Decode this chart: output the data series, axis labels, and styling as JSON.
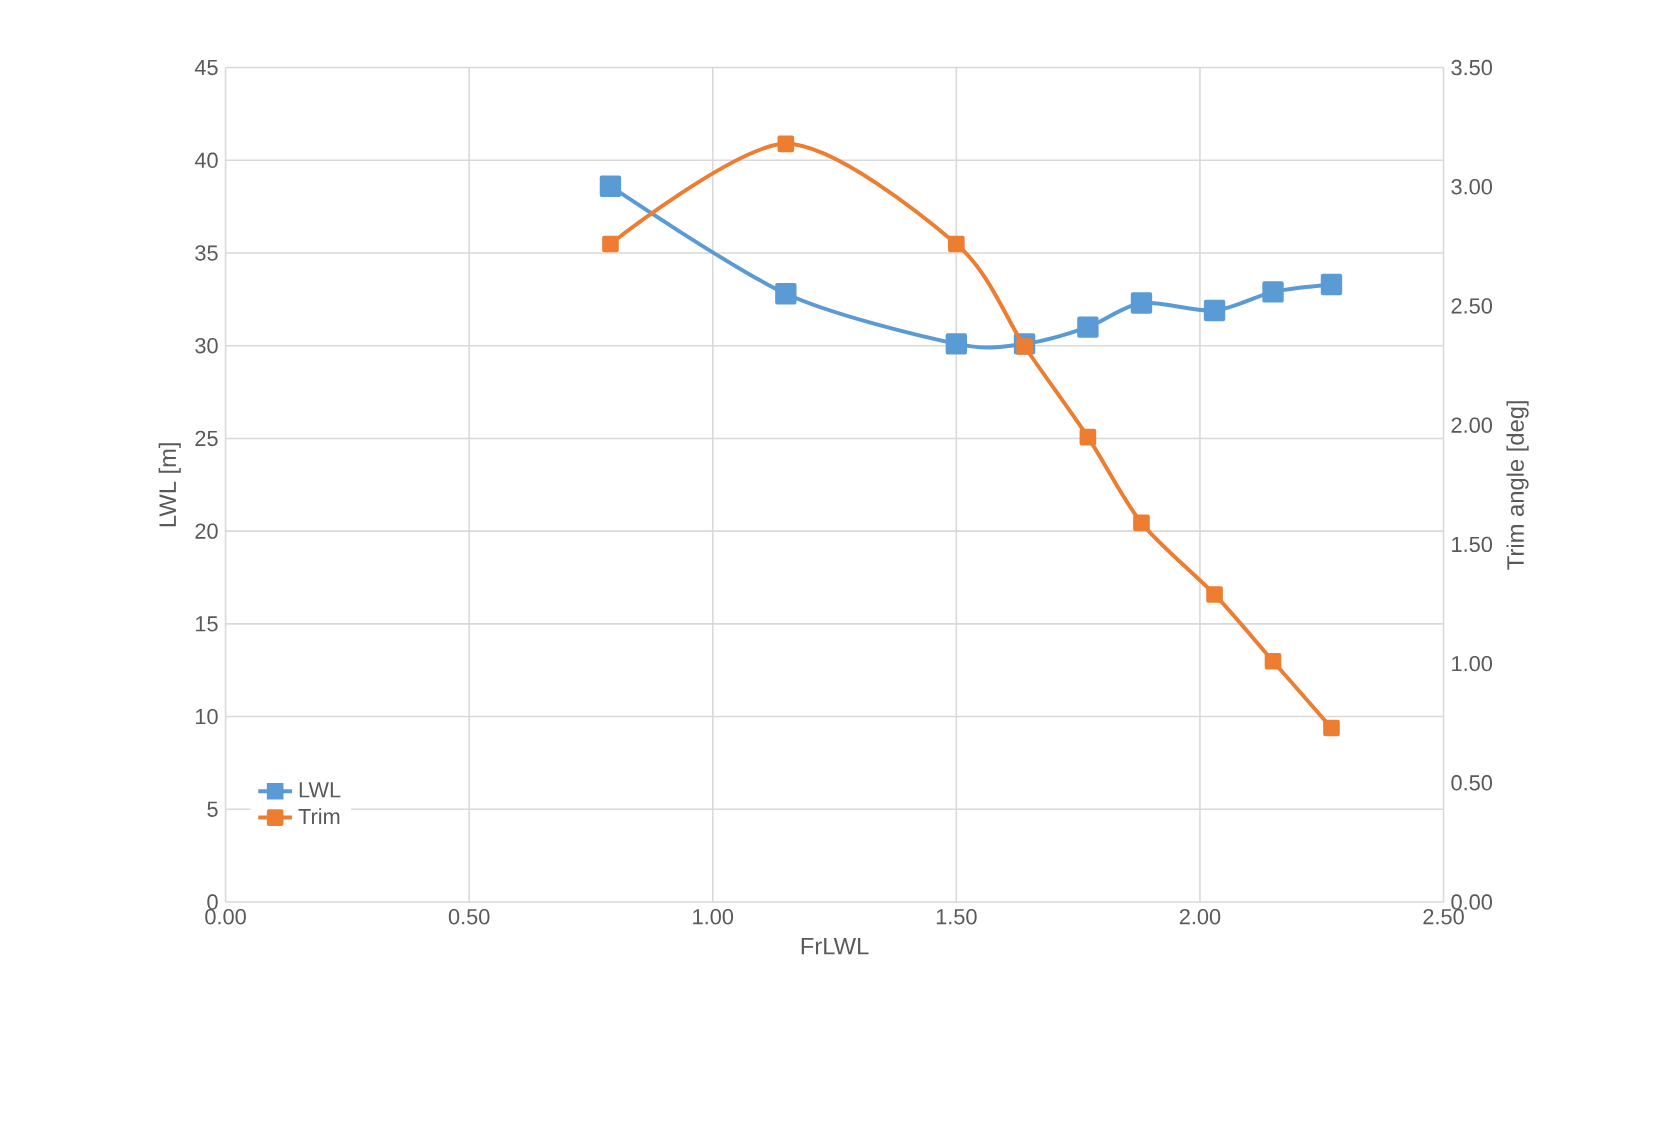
{
  "chart_data": {
    "type": "line",
    "xlabel": "FrLWL",
    "ylabel": "LWL [m]",
    "y2label": "Trim angle [deg]",
    "x": [
      0.79,
      1.15,
      1.5,
      1.64,
      1.77,
      1.88,
      2.03,
      2.15,
      2.27
    ],
    "series": [
      {
        "name": "LWL",
        "color": "#5b9bd5",
        "values": [
          38.6,
          32.8,
          30.1,
          30.1,
          31.0,
          32.3,
          31.9,
          32.9,
          33.3
        ]
      },
      {
        "name": "Trim",
        "color": "#ed7d31",
        "axis": "y2",
        "values": [
          2.76,
          3.18,
          2.76,
          2.33,
          1.95,
          1.59,
          1.29,
          1.01,
          0.73
        ]
      }
    ],
    "xlim": [
      0,
      2.5
    ],
    "xticks": [
      {
        "value": 0,
        "label": "0.00"
      },
      {
        "value": 0.5,
        "label": "0.50"
      },
      {
        "value": 1,
        "label": "1.00"
      },
      {
        "value": 1.5,
        "label": "1.50"
      },
      {
        "value": 2,
        "label": "2.00"
      },
      {
        "value": 2.5,
        "label": "2.50"
      }
    ],
    "ylim": [
      0,
      45
    ],
    "yticks": [
      0,
      5,
      10,
      15,
      20,
      25,
      30,
      35,
      40,
      45
    ],
    "y2lim": [
      0,
      3.5
    ],
    "y2ticks": [
      {
        "value": 0,
        "label": "0.00"
      },
      {
        "value": 0.5,
        "label": "0.50"
      },
      {
        "value": 1,
        "label": "1.00"
      },
      {
        "value": 1.5,
        "label": "1.50"
      },
      {
        "value": 2,
        "label": "2.00"
      },
      {
        "value": 2.5,
        "label": "2.50"
      },
      {
        "value": 3,
        "label": "3.00"
      },
      {
        "value": 3.5,
        "label": "3.50"
      }
    ],
    "grid": true,
    "legend": "left",
    "marker": "square",
    "line_style": "solid"
  }
}
